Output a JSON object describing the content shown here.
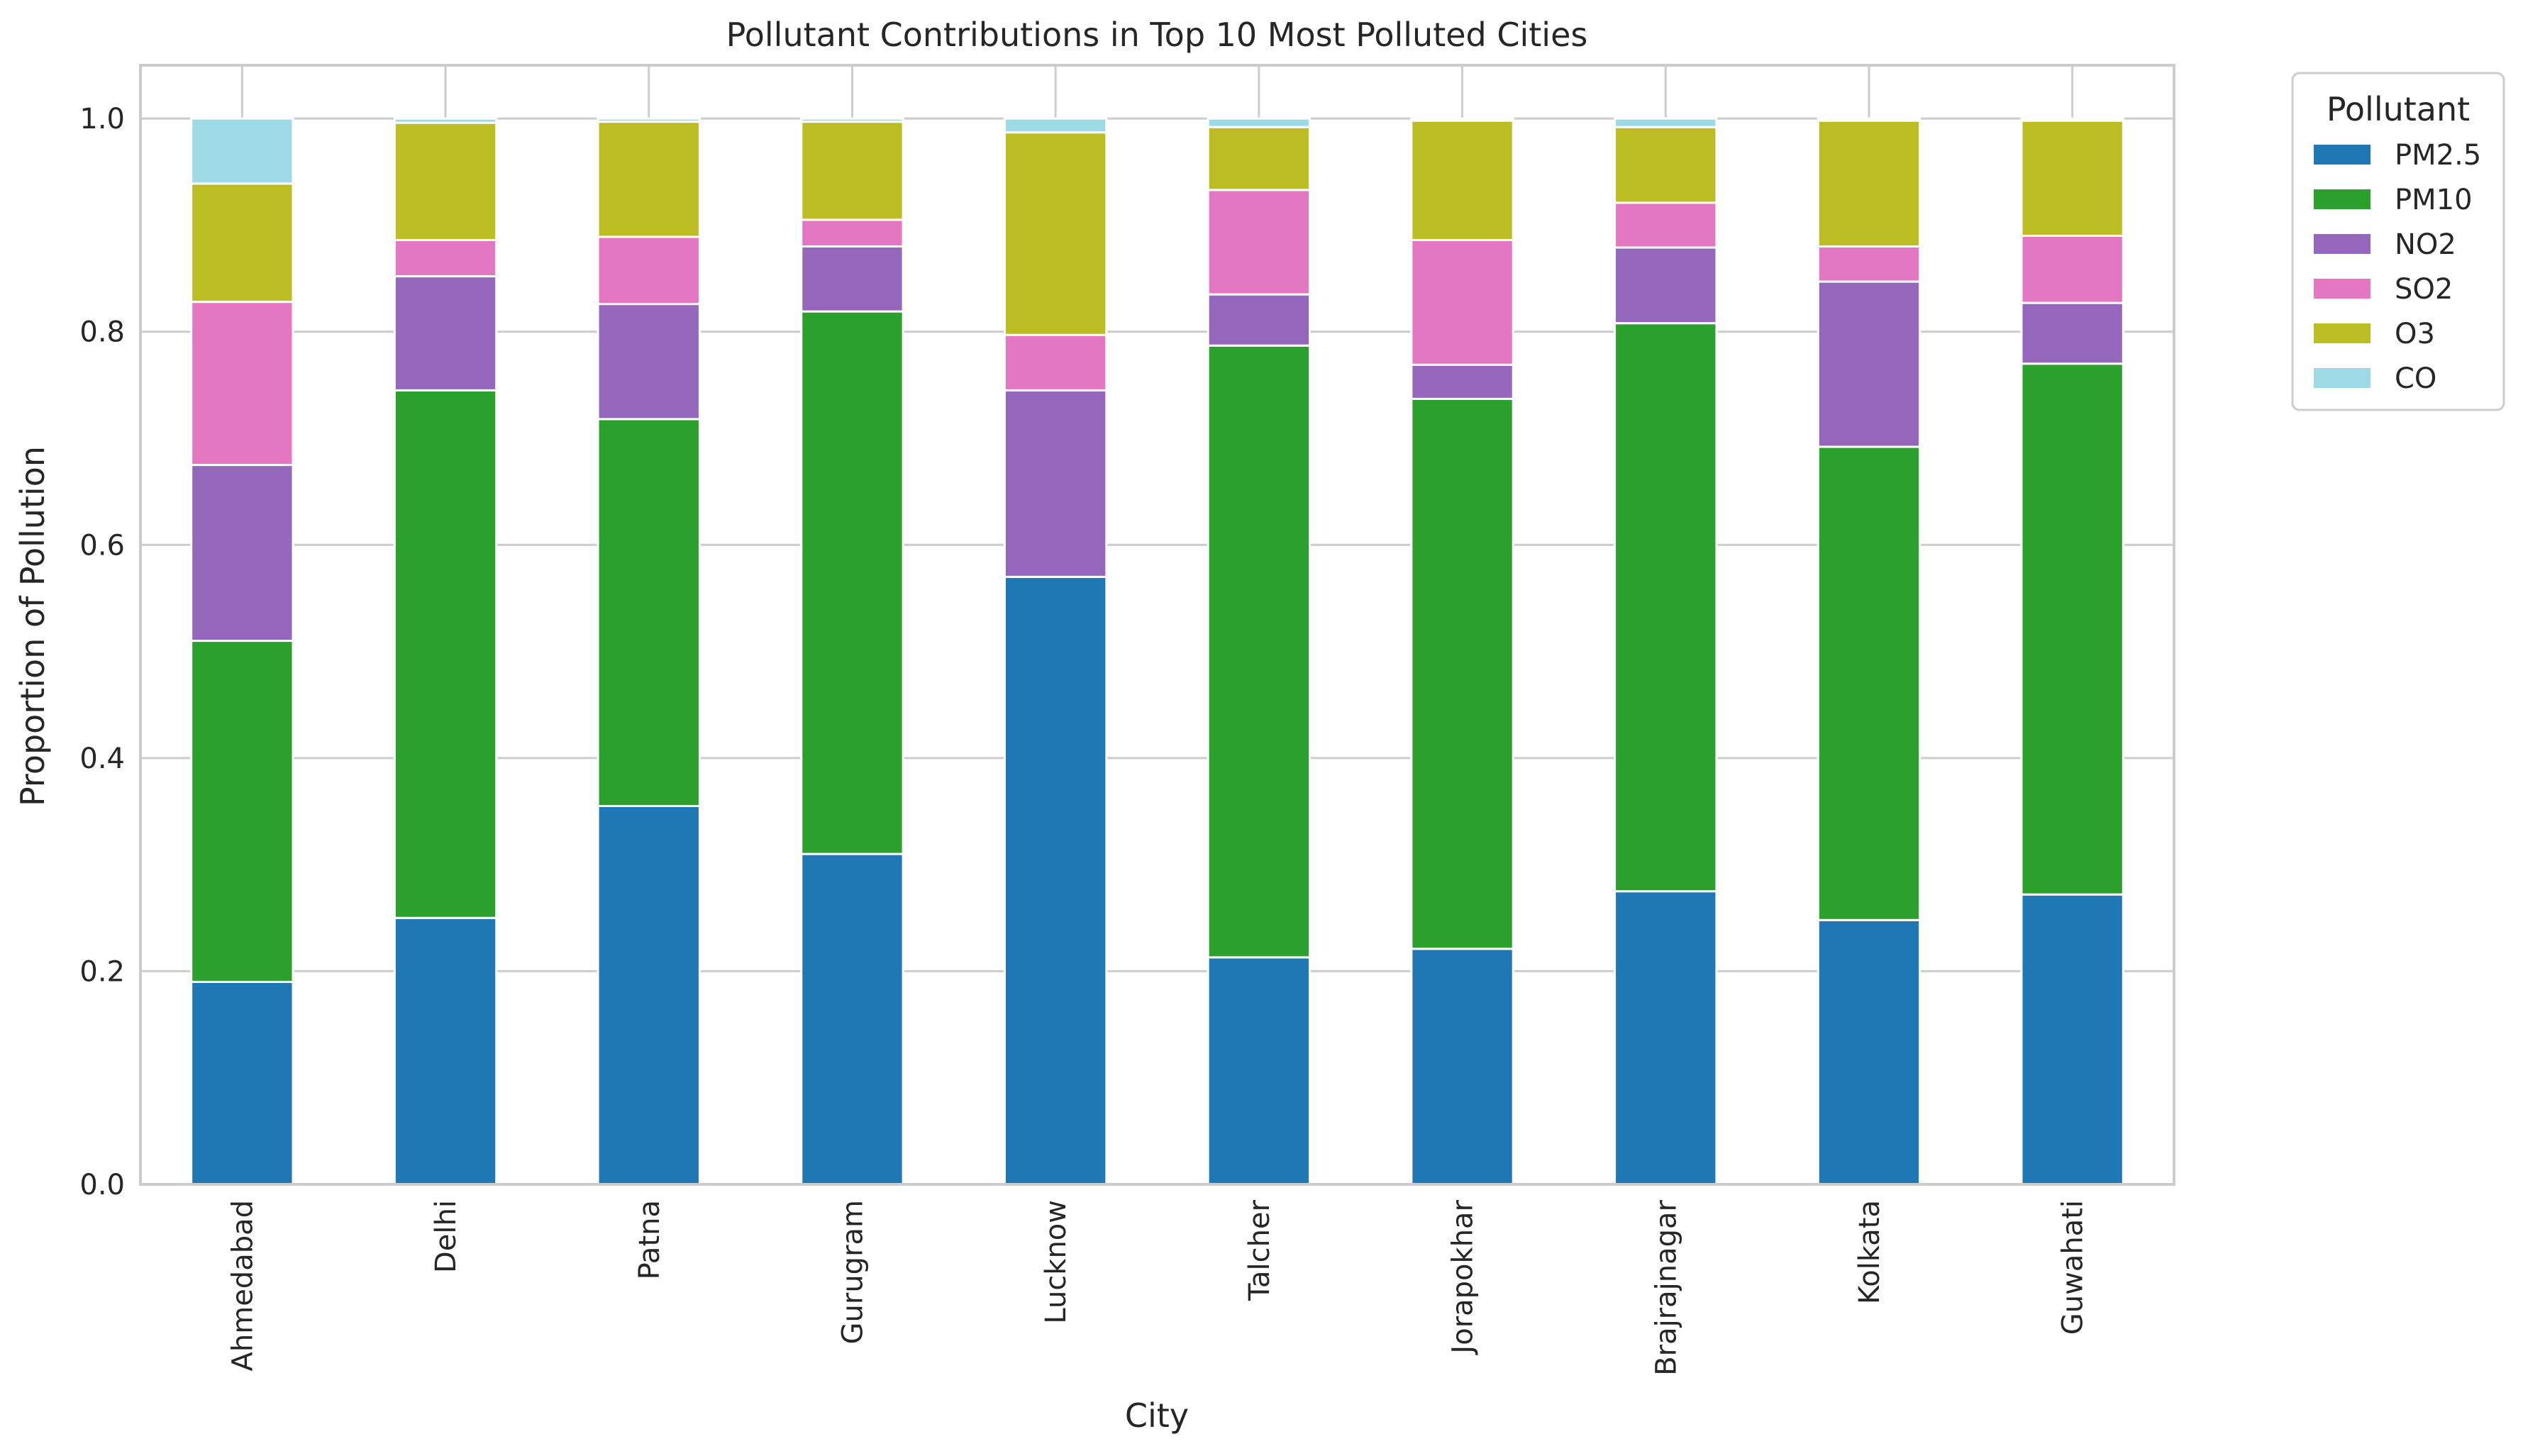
{
  "chart_data": {
    "type": "bar",
    "stacked": true,
    "title": "Pollutant Contributions in Top 10 Most Polluted Cities",
    "xlabel": "City",
    "ylabel": "Proportion of Pollution",
    "ylim": [
      0,
      1.05
    ],
    "yticks": [
      0.0,
      0.2,
      0.4,
      0.6,
      0.8,
      1.0
    ],
    "ytick_labels": [
      "0.0",
      "0.2",
      "0.4",
      "0.6",
      "0.8",
      "1.0"
    ],
    "grid": true,
    "legend": {
      "title": "Pollutant",
      "placement": "outside-top-right"
    },
    "categories": [
      "Ahmedabad",
      "Delhi",
      "Patna",
      "Gurugram",
      "Lucknow",
      "Talcher",
      "Jorapokhar",
      "Brajrajnagar",
      "Kolkata",
      "Guwahati"
    ],
    "series": [
      {
        "name": "PM2.5",
        "color": "#1f77b4",
        "values": [
          0.19,
          0.25,
          0.355,
          0.31,
          0.57,
          0.213,
          0.221,
          0.275,
          0.248,
          0.272
        ]
      },
      {
        "name": "PM10",
        "color": "#2ca02c",
        "values": [
          0.32,
          0.495,
          0.363,
          0.509,
          0.0,
          0.574,
          0.516,
          0.533,
          0.444,
          0.498
        ]
      },
      {
        "name": "NO2",
        "color": "#9467bd",
        "values": [
          0.165,
          0.107,
          0.108,
          0.061,
          0.175,
          0.048,
          0.032,
          0.071,
          0.155,
          0.057
        ]
      },
      {
        "name": "SO2",
        "color": "#e377c2",
        "values": [
          0.153,
          0.034,
          0.063,
          0.025,
          0.052,
          0.098,
          0.117,
          0.042,
          0.033,
          0.063
        ]
      },
      {
        "name": "O3",
        "color": "#bcbd22",
        "values": [
          0.111,
          0.11,
          0.108,
          0.092,
          0.19,
          0.059,
          0.112,
          0.071,
          0.118,
          0.108
        ]
      },
      {
        "name": "CO",
        "color": "#9edae5",
        "values": [
          0.061,
          0.004,
          0.003,
          0.003,
          0.013,
          0.008,
          0.002,
          0.008,
          0.002,
          0.002
        ]
      }
    ]
  }
}
